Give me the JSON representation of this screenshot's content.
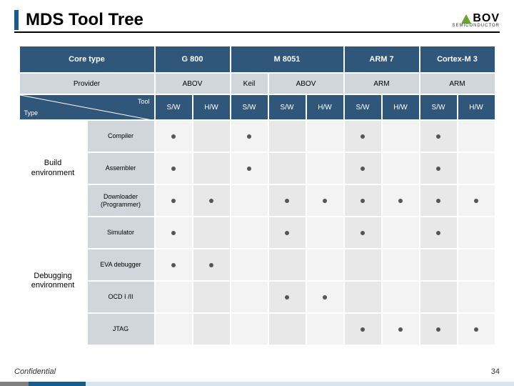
{
  "title": "MDS Tool Tree",
  "logo": {
    "brand": "BOV",
    "sub": "SEMICONDUCTOR"
  },
  "headers": {
    "coreType": "Core type",
    "provider": "Provider",
    "toolLabel": "Tool",
    "typeLabel": "Type",
    "cores": [
      "G 800",
      "M 8051",
      "ARM 7",
      "Cortex-M 3"
    ],
    "coreSpans": [
      1,
      2,
      1,
      1
    ],
    "providers": [
      "ABOV",
      "Keil",
      "ABOV",
      "ARM",
      "ARM"
    ],
    "provSpans": [
      1,
      1,
      1,
      1,
      1
    ],
    "sw": "S/W",
    "hw": "H/W",
    "swhwPattern": [
      "S/W",
      "H/W",
      "S/W",
      "S/W",
      "H/W",
      "S/W",
      "H/W",
      "S/W",
      "H/W"
    ]
  },
  "categories": [
    {
      "label": "Build\nenvironment",
      "rows": [
        "Compiler",
        "Assembler",
        "Downloader\n(Programmer)"
      ]
    },
    {
      "label": "Debugging\nenvironment",
      "rows": [
        "Simulator",
        "EVA debugger",
        "OCD I /II",
        "JTAG"
      ]
    }
  ],
  "dots": {
    "Compiler": [
      1,
      0,
      1,
      0,
      0,
      1,
      0,
      1,
      0
    ],
    "Assembler": [
      1,
      0,
      1,
      0,
      0,
      1,
      0,
      1,
      0
    ],
    "Downloader\n(Programmer)": [
      1,
      1,
      0,
      1,
      1,
      1,
      1,
      1,
      1
    ],
    "Simulator": [
      1,
      0,
      0,
      1,
      0,
      1,
      0,
      1,
      0
    ],
    "EVA debugger": [
      1,
      1,
      0,
      0,
      0,
      0,
      0,
      0,
      0
    ],
    "OCD I /II": [
      0,
      0,
      0,
      1,
      1,
      0,
      0,
      0,
      0
    ],
    "JTAG": [
      0,
      0,
      0,
      0,
      0,
      1,
      1,
      1,
      1
    ]
  },
  "pageNum": "34",
  "confidential": "Confidential",
  "colors": {
    "headerBg": "#30567a",
    "subHeadBg": "#d1d6db",
    "cellBgA": "#f3f3f3",
    "cellBgB": "#e8e8e8",
    "accent": "#1c5a8a",
    "logoGreen": "#6aa42f"
  }
}
